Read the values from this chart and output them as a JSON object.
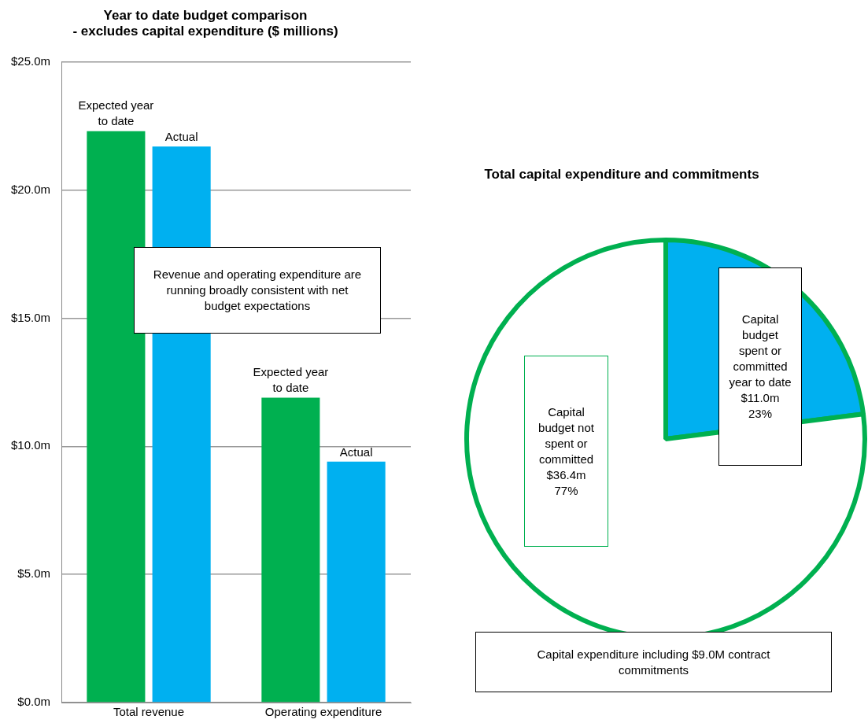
{
  "chart_data": [
    {
      "type": "bar",
      "title": "Year to date budget comparison",
      "subtitle": "- excludes capital expenditure ($ millions)",
      "categories": [
        "Total revenue",
        "Operating expenditure"
      ],
      "series": [
        {
          "name": "Expected year to date",
          "color": "#00b050",
          "values": [
            22.3,
            11.9
          ]
        },
        {
          "name": "Actual",
          "color": "#00b0f0",
          "values": [
            21.7,
            9.4
          ]
        }
      ],
      "ylim": [
        0,
        25
      ],
      "yticks": [
        {
          "value": 0,
          "label": "$0.0m"
        },
        {
          "value": 5,
          "label": "$5.0m"
        },
        {
          "value": 10,
          "label": "$10.0m"
        },
        {
          "value": 15,
          "label": "$15.0m"
        },
        {
          "value": 20,
          "label": "$20.0m"
        },
        {
          "value": 25,
          "label": "$25.0m"
        }
      ],
      "grid": "y",
      "annotations": [
        "Revenue and operating expenditure are running broadly consistent with net budget expectations"
      ]
    },
    {
      "type": "pie",
      "title": "Total capital expenditure and commitments",
      "categories": [
        "Capital budget spent or committed year to date",
        "Capital budget not spent or committed"
      ],
      "values": [
        23,
        77
      ],
      "colors": [
        "#00b0f0",
        "#ffffff"
      ],
      "value_labels": [
        "$11.0m 23%",
        "$36.4m 77%"
      ],
      "annotations": [
        "Capital expenditure including $9.0M contract commitments"
      ]
    }
  ]
}
